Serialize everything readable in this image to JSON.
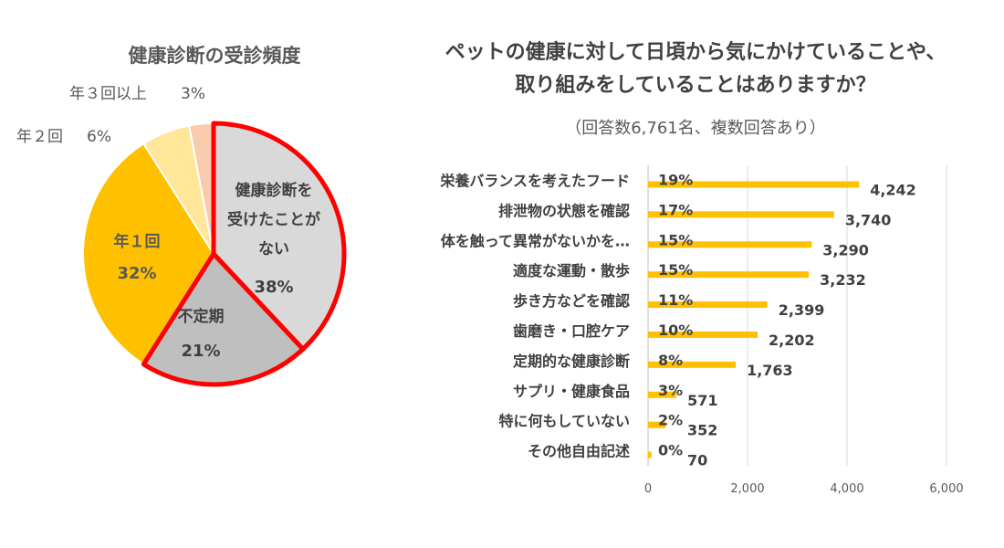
{
  "chart_data": [
    {
      "type": "pie",
      "title": "健康診断の受診頻度",
      "slices": [
        {
          "label": "健康診断を受けたことがない",
          "label_lines": [
            "健康診断を",
            "受けたことが",
            "ない"
          ],
          "value": 38,
          "pct": "38%",
          "color": "#d9d9d9",
          "highlight": true
        },
        {
          "label": "不定期",
          "label_lines": [
            "不定期"
          ],
          "value": 21,
          "pct": "21%",
          "color": "#bfbfbf",
          "highlight": true
        },
        {
          "label": "年１回",
          "label_lines": [
            "年１回"
          ],
          "value": 32,
          "pct": "32%",
          "color": "#ffc000",
          "highlight": false
        },
        {
          "label": "年２回",
          "label_lines": [
            "年２回"
          ],
          "value": 6,
          "pct": "6%",
          "color": "#ffe699",
          "highlight": false
        },
        {
          "label": "年３回以上",
          "label_lines": [
            "年３回以上"
          ],
          "value": 3,
          "pct": "3%",
          "color": "#f8cbad",
          "highlight": false
        }
      ],
      "highlight_color": "#ff0000"
    },
    {
      "type": "bar",
      "orientation": "horizontal",
      "title": "ペットの健康に対して日頃から気にかけていることや、取り組みをしていることはありますか？",
      "title_lines": [
        "ペットの健康に対して日頃から気にかけていることや、",
        "取り組みをしていることはありますか？"
      ],
      "subtitle": "（回答数6,761名、複数回答あり）",
      "categories": [
        "栄養バランスを考えたフード",
        "排泄物の状態を確認",
        "体を触って異常がないかを…",
        "適度な運動・散歩",
        "歩き方などを確認",
        "歯磨き・口腔ケア",
        "定期的な健康診断",
        "サプリ・健康食品",
        "特に何もしていない",
        "その他自由記述"
      ],
      "values": [
        4242,
        3740,
        3290,
        3232,
        2399,
        2202,
        1763,
        571,
        352,
        70
      ],
      "value_labels": [
        "4,242",
        "3,740",
        "3,290",
        "3,232",
        "2,399",
        "2,202",
        "1,763",
        "571",
        "352",
        "70"
      ],
      "percent_labels": [
        "19%",
        "17%",
        "15%",
        "15%",
        "11%",
        "10%",
        "8%",
        "3%",
        "2%",
        "0%"
      ],
      "xlim": [
        0,
        6000
      ],
      "xticks": [
        0,
        2000,
        4000,
        6000
      ],
      "xtick_labels": [
        "0",
        "2,000",
        "4,000",
        "6,000"
      ],
      "bar_color": "#ffc000",
      "grid": true
    }
  ]
}
